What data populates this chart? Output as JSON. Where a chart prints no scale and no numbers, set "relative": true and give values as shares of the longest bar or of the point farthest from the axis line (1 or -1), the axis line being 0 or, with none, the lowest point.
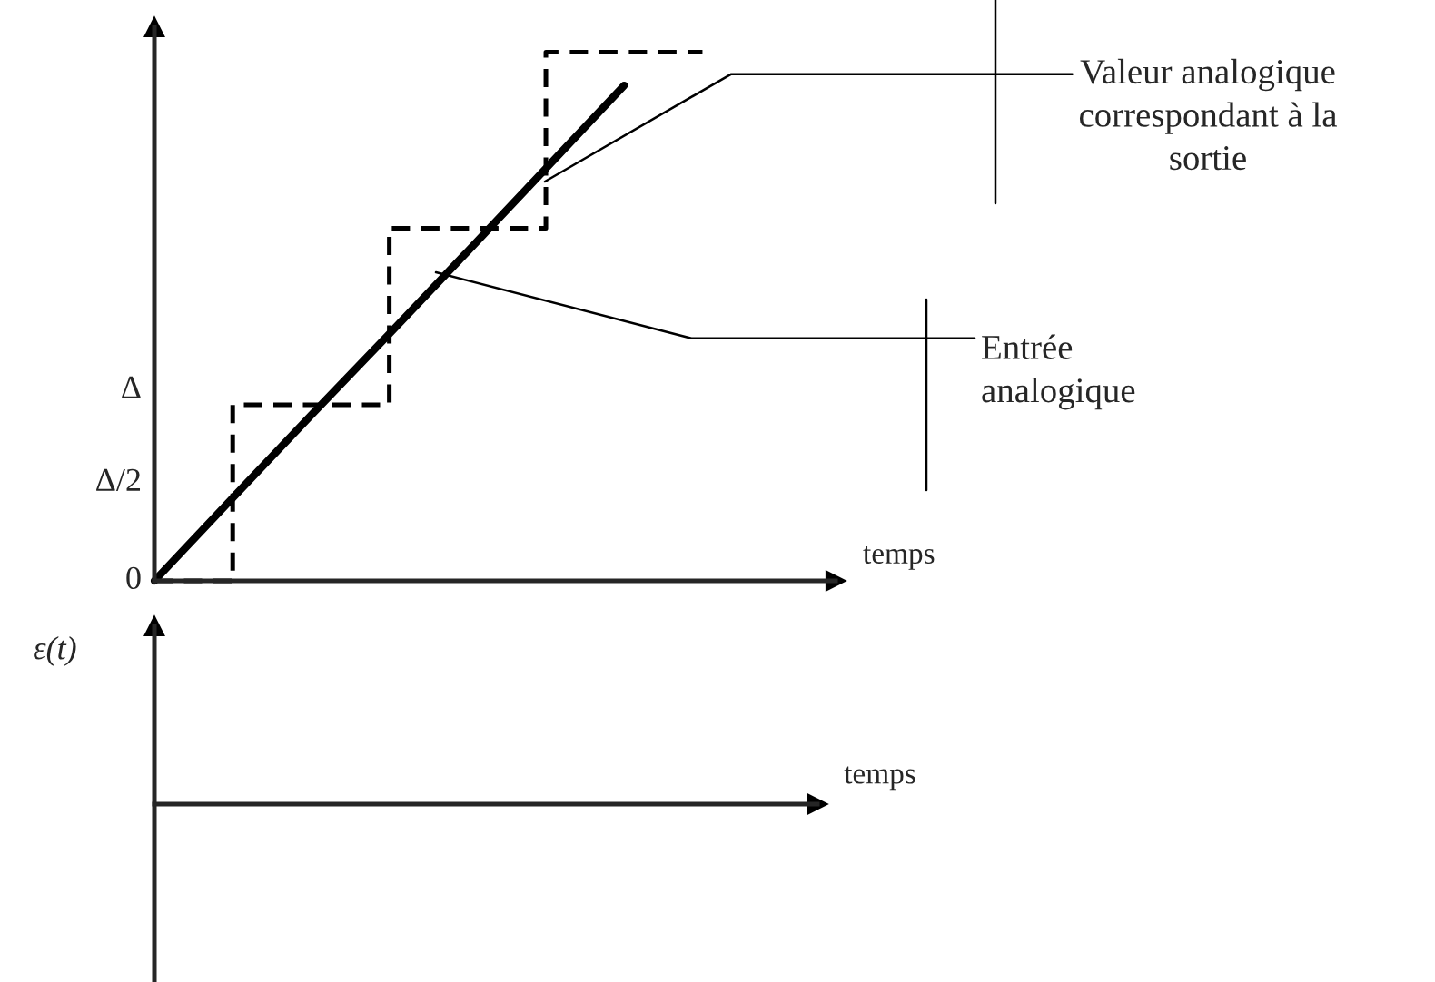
{
  "chart_data": [
    {
      "type": "line",
      "xlabel": "temps",
      "relative": true,
      "categories": [
        null,
        null,
        null,
        null,
        null,
        null,
        null,
        null
      ],
      "series": [
        {
          "type": "line",
          "color": "#000000",
          "line_style": "solid",
          "values": [
            0,
            0.157,
            0.313,
            0.467,
            0.623,
            0.78,
            0.937,
            null
          ]
        },
        {
          "type": "step",
          "color": "#000000",
          "line_style": "dashed",
          "values": [
            0,
            0.333,
            0.333,
            0.667,
            0.667,
            1,
            1,
            1
          ]
        }
      ],
      "annotations": [
        "0",
        "Δ/2",
        "Δ",
        "Valeur analogique\ncorrespondant à la\nsortie",
        "Entrée\nanalogique"
      ]
    },
    {
      "type": "other",
      "ylabel": "ε(t)",
      "xlabel": "temps"
    }
  ]
}
